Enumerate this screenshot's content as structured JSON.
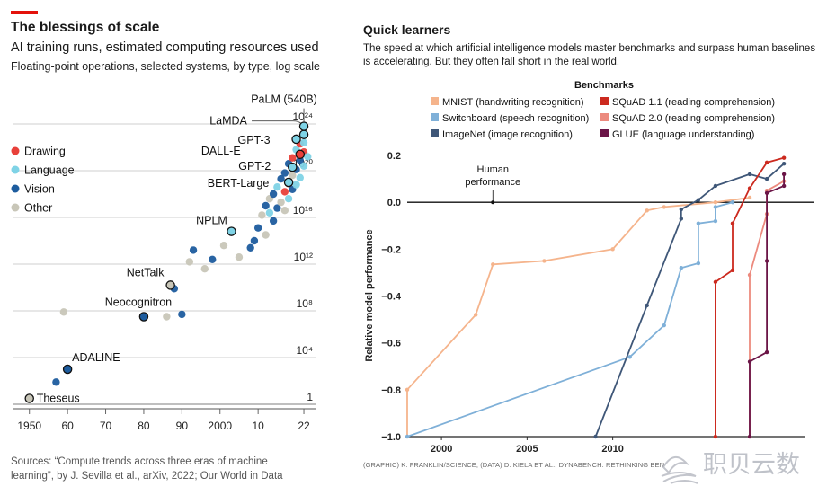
{
  "left_panel": {
    "title": "The blessings of scale",
    "subtitle": "AI training runs, estimated computing resources used",
    "note": "Floating-point operations, selected systems, by type, log scale",
    "source": "Sources: “Compute trends across three eras of machine learning”, by J. Sevilla et al., arXiv, 2022; Our World in Data",
    "colors": {
      "Drawing": "#e8403a",
      "Language": "#7fd3e6",
      "Vision": "#1d5c9e",
      "Other": "#c8c6b8",
      "accent": "#e3120b"
    }
  },
  "right_panel": {
    "title": "Quick learners",
    "subtitle": "The speed at which artificial intelligence models master benchmarks and surpass human baselines is accelerating. But they often fall short in the real world.",
    "credit": "(GRAPHIC) K. FRANKLIN/SCIENCE; (DATA) D. KIELA ET AL., DYNABENCH: RETHINKING BEN",
    "watermark": "职贝云数"
  },
  "chart_data": [
    {
      "type": "scatter",
      "title": "The blessings of scale",
      "subtitle": "AI training runs, estimated computing resources used",
      "xlabel": "",
      "ylabel": "Floating-point operations (log scale)",
      "x_ticks": [
        "1950",
        "60",
        "70",
        "80",
        "90",
        "2000",
        "10",
        "22"
      ],
      "x_tick_values": [
        1950,
        1960,
        1970,
        1980,
        1990,
        2000,
        2010,
        2022
      ],
      "y_ticks": [
        "1",
        "10⁴",
        "10⁸",
        "10¹²",
        "10¹⁶",
        "10²⁰",
        "10²⁴"
      ],
      "y_tick_values": [
        0,
        4,
        8,
        12,
        16,
        20,
        24
      ],
      "xlim": [
        1947,
        2026
      ],
      "ylim": [
        -1,
        26
      ],
      "legend": [
        "Drawing",
        "Language",
        "Vision",
        "Other"
      ],
      "labeled": [
        {
          "name": "Theseus",
          "x": 1950,
          "y": 0.5,
          "cat": "Other"
        },
        {
          "name": "ADALINE",
          "x": 1960,
          "y": 3.0,
          "cat": "Vision"
        },
        {
          "name": "Neocognitron",
          "x": 1980,
          "y": 7.5,
          "cat": "Vision"
        },
        {
          "name": "NetTalk",
          "x": 1987,
          "y": 10.2,
          "cat": "Other"
        },
        {
          "name": "NPLM",
          "x": 2003,
          "y": 14.8,
          "cat": "Language"
        },
        {
          "name": "BERT-Large",
          "x": 2018,
          "y": 19.0,
          "cat": "Language"
        },
        {
          "name": "GPT-2",
          "x": 2019,
          "y": 20.3,
          "cat": "Language"
        },
        {
          "name": "DALL-E",
          "x": 2021,
          "y": 21.4,
          "cat": "Drawing"
        },
        {
          "name": "GPT-3",
          "x": 2020,
          "y": 22.7,
          "cat": "Language"
        },
        {
          "name": "LaMDA",
          "x": 2022,
          "y": 23.1,
          "cat": "Language"
        },
        {
          "name": "PaLM (540B)",
          "x": 2022,
          "y": 23.8,
          "cat": "Language"
        }
      ],
      "points": [
        {
          "x": 1957,
          "y": 1.9,
          "cat": "Vision"
        },
        {
          "x": 1959,
          "y": 7.9,
          "cat": "Other"
        },
        {
          "x": 1986,
          "y": 7.5,
          "cat": "Other"
        },
        {
          "x": 1988,
          "y": 9.9,
          "cat": "Vision"
        },
        {
          "x": 1990,
          "y": 7.7,
          "cat": "Vision"
        },
        {
          "x": 1992,
          "y": 12.2,
          "cat": "Other"
        },
        {
          "x": 1993,
          "y": 13.2,
          "cat": "Vision"
        },
        {
          "x": 1996,
          "y": 11.6,
          "cat": "Other"
        },
        {
          "x": 1998,
          "y": 12.4,
          "cat": "Vision"
        },
        {
          "x": 2001,
          "y": 13.6,
          "cat": "Other"
        },
        {
          "x": 2005,
          "y": 12.6,
          "cat": "Other"
        },
        {
          "x": 2008,
          "y": 13.4,
          "cat": "Vision"
        },
        {
          "x": 2009,
          "y": 14.0,
          "cat": "Vision"
        },
        {
          "x": 2010,
          "y": 15.1,
          "cat": "Vision"
        },
        {
          "x": 2011,
          "y": 16.2,
          "cat": "Other"
        },
        {
          "x": 2012,
          "y": 14.5,
          "cat": "Other"
        },
        {
          "x": 2012,
          "y": 17.0,
          "cat": "Vision"
        },
        {
          "x": 2013,
          "y": 16.4,
          "cat": "Language"
        },
        {
          "x": 2013,
          "y": 17.6,
          "cat": "Other"
        },
        {
          "x": 2014,
          "y": 15.7,
          "cat": "Vision"
        },
        {
          "x": 2014,
          "y": 18.0,
          "cat": "Vision"
        },
        {
          "x": 2015,
          "y": 16.8,
          "cat": "Vision"
        },
        {
          "x": 2015,
          "y": 18.6,
          "cat": "Language"
        },
        {
          "x": 2016,
          "y": 17.3,
          "cat": "Other"
        },
        {
          "x": 2016,
          "y": 19.3,
          "cat": "Vision"
        },
        {
          "x": 2017,
          "y": 16.6,
          "cat": "Other"
        },
        {
          "x": 2017,
          "y": 18.2,
          "cat": "Drawing"
        },
        {
          "x": 2017,
          "y": 19.8,
          "cat": "Vision"
        },
        {
          "x": 2018,
          "y": 17.6,
          "cat": "Language"
        },
        {
          "x": 2018,
          "y": 18.9,
          "cat": "Drawing"
        },
        {
          "x": 2018,
          "y": 20.6,
          "cat": "Vision"
        },
        {
          "x": 2019,
          "y": 18.4,
          "cat": "Vision"
        },
        {
          "x": 2019,
          "y": 19.6,
          "cat": "Other"
        },
        {
          "x": 2019,
          "y": 21.1,
          "cat": "Drawing"
        },
        {
          "x": 2020,
          "y": 18.8,
          "cat": "Language"
        },
        {
          "x": 2020,
          "y": 20.1,
          "cat": "Vision"
        },
        {
          "x": 2020,
          "y": 21.8,
          "cat": "Language"
        },
        {
          "x": 2021,
          "y": 19.4,
          "cat": "Language"
        },
        {
          "x": 2021,
          "y": 20.9,
          "cat": "Vision"
        },
        {
          "x": 2021,
          "y": 22.3,
          "cat": "Drawing"
        },
        {
          "x": 2022,
          "y": 20.4,
          "cat": "Language"
        },
        {
          "x": 2022,
          "y": 21.6,
          "cat": "Drawing"
        },
        {
          "x": 2022,
          "y": 22.4,
          "cat": "Language"
        },
        {
          "x": 2023,
          "y": 21.2,
          "cat": "Language"
        }
      ]
    },
    {
      "type": "line",
      "title": "Quick learners",
      "legend_title": "Benchmarks",
      "xlabel": "",
      "ylabel": "Relative model performance",
      "xlim": [
        1998,
        2021.2
      ],
      "ylim": [
        -1.0,
        0.25
      ],
      "x_ticks": [
        "2000",
        "2005",
        "2010"
      ],
      "x_tick_values": [
        2000,
        2005,
        2010
      ],
      "y_ticks": [
        "0.2",
        "0.0",
        "−0.2",
        "−0.4",
        "−0.6",
        "−0.8",
        "−1.0"
      ],
      "y_tick_values": [
        0.2,
        0.0,
        -0.2,
        -0.4,
        -0.6,
        -0.8,
        -1.0
      ],
      "baseline": {
        "y": 0.0,
        "label": [
          "Human",
          "performance"
        ],
        "marker_x": 2003
      },
      "series": [
        {
          "name": "MNIST (handwriting recognition)",
          "color": "#f5b48c",
          "points": [
            [
              1998,
              -1.0
            ],
            [
              1998,
              -0.8
            ],
            [
              2002,
              -0.48
            ],
            [
              2003,
              -0.265
            ],
            [
              2006,
              -0.25
            ],
            [
              2010,
              -0.2
            ],
            [
              2012,
              -0.035
            ],
            [
              2013,
              -0.02
            ],
            [
              2016,
              0.0
            ],
            [
              2018,
              0.02
            ]
          ]
        },
        {
          "name": "Switchboard (speech recognition)",
          "color": "#7fb0d8",
          "points": [
            [
              1998,
              -1.0
            ],
            [
              2011,
              -0.66
            ],
            [
              2013,
              -0.525
            ],
            [
              2014,
              -0.28
            ],
            [
              2015,
              -0.26
            ],
            [
              2015,
              -0.09
            ],
            [
              2016,
              -0.08
            ],
            [
              2016,
              -0.02
            ],
            [
              2017,
              0.0
            ]
          ]
        },
        {
          "name": "ImageNet (image recognition)",
          "color": "#3f5778",
          "points": [
            [
              2009,
              -1.0
            ],
            [
              2012,
              -0.44
            ],
            [
              2014,
              -0.07
            ],
            [
              2014,
              -0.03
            ],
            [
              2015,
              0.01
            ],
            [
              2016,
              0.07
            ],
            [
              2018,
              0.12
            ],
            [
              2019,
              0.1
            ],
            [
              2020,
              0.165
            ]
          ]
        },
        {
          "name": "SQuAD 1.1 (reading comprehension)",
          "color": "#cc2a1f",
          "points": [
            [
              2016,
              -1.0
            ],
            [
              2016,
              -0.34
            ],
            [
              2017,
              -0.29
            ],
            [
              2017,
              -0.09
            ],
            [
              2018,
              0.06
            ],
            [
              2019,
              0.17
            ],
            [
              2020,
              0.19
            ]
          ]
        },
        {
          "name": "SQuAD 2.0 (reading comprehension)",
          "color": "#ec8a7e",
          "points": [
            [
              2018,
              -1.0
            ],
            [
              2018,
              -0.31
            ],
            [
              2019,
              -0.05
            ],
            [
              2019,
              0.05
            ],
            [
              2020,
              0.09
            ]
          ]
        },
        {
          "name": "GLUE (language understanding)",
          "color": "#6b1547",
          "points": [
            [
              2018,
              -1.0
            ],
            [
              2018,
              -0.68
            ],
            [
              2019,
              -0.64
            ],
            [
              2019,
              -0.25
            ],
            [
              2019,
              0.04
            ],
            [
              2020,
              0.07
            ],
            [
              2020,
              0.12
            ]
          ]
        }
      ]
    }
  ]
}
